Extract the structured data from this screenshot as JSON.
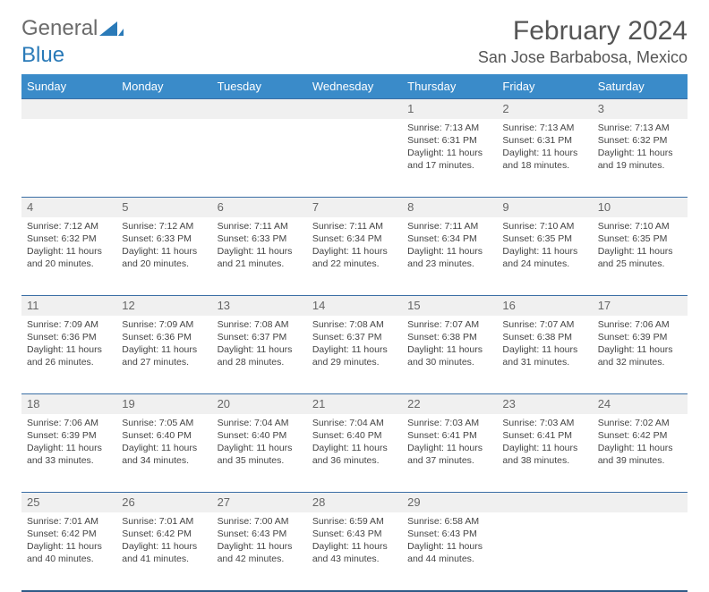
{
  "brand": {
    "part1": "General",
    "part2": "Blue"
  },
  "title": "February 2024",
  "location": "San Jose Barbabosa, Mexico",
  "colors": {
    "header_bg": "#3a8bc9",
    "header_text": "#ffffff",
    "row_date_bg": "#f0f0f0",
    "row_border": "#3a6ea5",
    "brand_gray": "#6b6b6b",
    "brand_blue": "#2a7ab8",
    "text": "#444444",
    "bottom_border": "#2f5b87"
  },
  "typography": {
    "title_fontsize": 30,
    "location_fontsize": 18,
    "dayhead_fontsize": 13,
    "body_fontsize": 10.5,
    "daynum_fontsize": 13
  },
  "days": [
    "Sunday",
    "Monday",
    "Tuesday",
    "Wednesday",
    "Thursday",
    "Friday",
    "Saturday"
  ],
  "weeks": [
    [
      null,
      null,
      null,
      null,
      {
        "n": "1",
        "sr": "Sunrise: 7:13 AM",
        "ss": "Sunset: 6:31 PM",
        "dl1": "Daylight: 11 hours",
        "dl2": "and 17 minutes."
      },
      {
        "n": "2",
        "sr": "Sunrise: 7:13 AM",
        "ss": "Sunset: 6:31 PM",
        "dl1": "Daylight: 11 hours",
        "dl2": "and 18 minutes."
      },
      {
        "n": "3",
        "sr": "Sunrise: 7:13 AM",
        "ss": "Sunset: 6:32 PM",
        "dl1": "Daylight: 11 hours",
        "dl2": "and 19 minutes."
      }
    ],
    [
      {
        "n": "4",
        "sr": "Sunrise: 7:12 AM",
        "ss": "Sunset: 6:32 PM",
        "dl1": "Daylight: 11 hours",
        "dl2": "and 20 minutes."
      },
      {
        "n": "5",
        "sr": "Sunrise: 7:12 AM",
        "ss": "Sunset: 6:33 PM",
        "dl1": "Daylight: 11 hours",
        "dl2": "and 20 minutes."
      },
      {
        "n": "6",
        "sr": "Sunrise: 7:11 AM",
        "ss": "Sunset: 6:33 PM",
        "dl1": "Daylight: 11 hours",
        "dl2": "and 21 minutes."
      },
      {
        "n": "7",
        "sr": "Sunrise: 7:11 AM",
        "ss": "Sunset: 6:34 PM",
        "dl1": "Daylight: 11 hours",
        "dl2": "and 22 minutes."
      },
      {
        "n": "8",
        "sr": "Sunrise: 7:11 AM",
        "ss": "Sunset: 6:34 PM",
        "dl1": "Daylight: 11 hours",
        "dl2": "and 23 minutes."
      },
      {
        "n": "9",
        "sr": "Sunrise: 7:10 AM",
        "ss": "Sunset: 6:35 PM",
        "dl1": "Daylight: 11 hours",
        "dl2": "and 24 minutes."
      },
      {
        "n": "10",
        "sr": "Sunrise: 7:10 AM",
        "ss": "Sunset: 6:35 PM",
        "dl1": "Daylight: 11 hours",
        "dl2": "and 25 minutes."
      }
    ],
    [
      {
        "n": "11",
        "sr": "Sunrise: 7:09 AM",
        "ss": "Sunset: 6:36 PM",
        "dl1": "Daylight: 11 hours",
        "dl2": "and 26 minutes."
      },
      {
        "n": "12",
        "sr": "Sunrise: 7:09 AM",
        "ss": "Sunset: 6:36 PM",
        "dl1": "Daylight: 11 hours",
        "dl2": "and 27 minutes."
      },
      {
        "n": "13",
        "sr": "Sunrise: 7:08 AM",
        "ss": "Sunset: 6:37 PM",
        "dl1": "Daylight: 11 hours",
        "dl2": "and 28 minutes."
      },
      {
        "n": "14",
        "sr": "Sunrise: 7:08 AM",
        "ss": "Sunset: 6:37 PM",
        "dl1": "Daylight: 11 hours",
        "dl2": "and 29 minutes."
      },
      {
        "n": "15",
        "sr": "Sunrise: 7:07 AM",
        "ss": "Sunset: 6:38 PM",
        "dl1": "Daylight: 11 hours",
        "dl2": "and 30 minutes."
      },
      {
        "n": "16",
        "sr": "Sunrise: 7:07 AM",
        "ss": "Sunset: 6:38 PM",
        "dl1": "Daylight: 11 hours",
        "dl2": "and 31 minutes."
      },
      {
        "n": "17",
        "sr": "Sunrise: 7:06 AM",
        "ss": "Sunset: 6:39 PM",
        "dl1": "Daylight: 11 hours",
        "dl2": "and 32 minutes."
      }
    ],
    [
      {
        "n": "18",
        "sr": "Sunrise: 7:06 AM",
        "ss": "Sunset: 6:39 PM",
        "dl1": "Daylight: 11 hours",
        "dl2": "and 33 minutes."
      },
      {
        "n": "19",
        "sr": "Sunrise: 7:05 AM",
        "ss": "Sunset: 6:40 PM",
        "dl1": "Daylight: 11 hours",
        "dl2": "and 34 minutes."
      },
      {
        "n": "20",
        "sr": "Sunrise: 7:04 AM",
        "ss": "Sunset: 6:40 PM",
        "dl1": "Daylight: 11 hours",
        "dl2": "and 35 minutes."
      },
      {
        "n": "21",
        "sr": "Sunrise: 7:04 AM",
        "ss": "Sunset: 6:40 PM",
        "dl1": "Daylight: 11 hours",
        "dl2": "and 36 minutes."
      },
      {
        "n": "22",
        "sr": "Sunrise: 7:03 AM",
        "ss": "Sunset: 6:41 PM",
        "dl1": "Daylight: 11 hours",
        "dl2": "and 37 minutes."
      },
      {
        "n": "23",
        "sr": "Sunrise: 7:03 AM",
        "ss": "Sunset: 6:41 PM",
        "dl1": "Daylight: 11 hours",
        "dl2": "and 38 minutes."
      },
      {
        "n": "24",
        "sr": "Sunrise: 7:02 AM",
        "ss": "Sunset: 6:42 PM",
        "dl1": "Daylight: 11 hours",
        "dl2": "and 39 minutes."
      }
    ],
    [
      {
        "n": "25",
        "sr": "Sunrise: 7:01 AM",
        "ss": "Sunset: 6:42 PM",
        "dl1": "Daylight: 11 hours",
        "dl2": "and 40 minutes."
      },
      {
        "n": "26",
        "sr": "Sunrise: 7:01 AM",
        "ss": "Sunset: 6:42 PM",
        "dl1": "Daylight: 11 hours",
        "dl2": "and 41 minutes."
      },
      {
        "n": "27",
        "sr": "Sunrise: 7:00 AM",
        "ss": "Sunset: 6:43 PM",
        "dl1": "Daylight: 11 hours",
        "dl2": "and 42 minutes."
      },
      {
        "n": "28",
        "sr": "Sunrise: 6:59 AM",
        "ss": "Sunset: 6:43 PM",
        "dl1": "Daylight: 11 hours",
        "dl2": "and 43 minutes."
      },
      {
        "n": "29",
        "sr": "Sunrise: 6:58 AM",
        "ss": "Sunset: 6:43 PM",
        "dl1": "Daylight: 11 hours",
        "dl2": "and 44 minutes."
      },
      null,
      null
    ]
  ]
}
